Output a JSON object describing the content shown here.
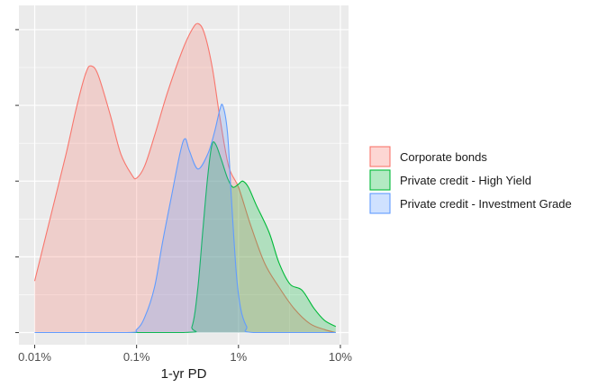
{
  "chart_data": {
    "type": "area",
    "title": "",
    "xlabel": "1-yr PD",
    "ylabel": "",
    "x_scale": "log10",
    "xlim_percent": [
      0.01,
      10
    ],
    "x_ticks": [
      0.01,
      0.1,
      1,
      10
    ],
    "x_tick_labels": [
      "0.01%",
      "0.1%",
      "1%",
      "10%"
    ],
    "y_tick_labels_shown": false,
    "ylim": [
      0,
      1
    ],
    "grid": true,
    "legend_position": "right",
    "colors": {
      "panel_background": "#ebebeb",
      "grid": "#ffffff"
    },
    "series": [
      {
        "name": "Corporate bonds",
        "line_color": "#f8766d",
        "fill_color": "#f8766d",
        "points": [
          [
            0.01,
            0.17
          ],
          [
            0.014,
            0.37
          ],
          [
            0.02,
            0.58
          ],
          [
            0.026,
            0.75
          ],
          [
            0.032,
            0.86
          ],
          [
            0.036,
            0.88
          ],
          [
            0.042,
            0.85
          ],
          [
            0.055,
            0.72
          ],
          [
            0.07,
            0.59
          ],
          [
            0.09,
            0.52
          ],
          [
            0.1,
            0.51
          ],
          [
            0.12,
            0.55
          ],
          [
            0.15,
            0.65
          ],
          [
            0.2,
            0.79
          ],
          [
            0.28,
            0.93
          ],
          [
            0.35,
            1.0
          ],
          [
            0.4,
            1.02
          ],
          [
            0.46,
            0.99
          ],
          [
            0.55,
            0.88
          ],
          [
            0.65,
            0.72
          ],
          [
            0.8,
            0.55
          ],
          [
            1.0,
            0.48
          ],
          [
            1.3,
            0.36
          ],
          [
            1.8,
            0.23
          ],
          [
            2.5,
            0.15
          ],
          [
            3.5,
            0.08
          ],
          [
            5.0,
            0.03
          ],
          [
            7.0,
            0.01
          ],
          [
            9.0,
            0.0
          ]
        ]
      },
      {
        "name": "Private credit - High Yield",
        "line_color": "#00ba38",
        "fill_color": "#00ba38",
        "points": [
          [
            0.01,
            0.0
          ],
          [
            0.28,
            0.0
          ],
          [
            0.35,
            0.02
          ],
          [
            0.4,
            0.15
          ],
          [
            0.45,
            0.35
          ],
          [
            0.5,
            0.52
          ],
          [
            0.55,
            0.62
          ],
          [
            0.6,
            0.62
          ],
          [
            0.68,
            0.57
          ],
          [
            0.78,
            0.51
          ],
          [
            0.88,
            0.48
          ],
          [
            1.0,
            0.49
          ],
          [
            1.1,
            0.5
          ],
          [
            1.25,
            0.48
          ],
          [
            1.5,
            0.42
          ],
          [
            2.0,
            0.33
          ],
          [
            2.5,
            0.23
          ],
          [
            3.2,
            0.16
          ],
          [
            4.2,
            0.14
          ],
          [
            5.5,
            0.08
          ],
          [
            7.0,
            0.04
          ],
          [
            9.0,
            0.02
          ]
        ]
      },
      {
        "name": "Private credit - Investment Grade",
        "line_color": "#619cff",
        "fill_color": "#619cff",
        "points": [
          [
            0.01,
            0.0
          ],
          [
            0.08,
            0.0
          ],
          [
            0.1,
            0.01
          ],
          [
            0.12,
            0.05
          ],
          [
            0.15,
            0.15
          ],
          [
            0.18,
            0.3
          ],
          [
            0.22,
            0.45
          ],
          [
            0.27,
            0.6
          ],
          [
            0.3,
            0.64
          ],
          [
            0.33,
            0.6
          ],
          [
            0.4,
            0.54
          ],
          [
            0.5,
            0.59
          ],
          [
            0.58,
            0.66
          ],
          [
            0.65,
            0.73
          ],
          [
            0.7,
            0.75
          ],
          [
            0.78,
            0.66
          ],
          [
            0.85,
            0.45
          ],
          [
            0.95,
            0.2
          ],
          [
            1.05,
            0.08
          ],
          [
            1.2,
            0.02
          ],
          [
            1.4,
            0.0
          ],
          [
            9.0,
            0.0
          ]
        ]
      }
    ]
  }
}
